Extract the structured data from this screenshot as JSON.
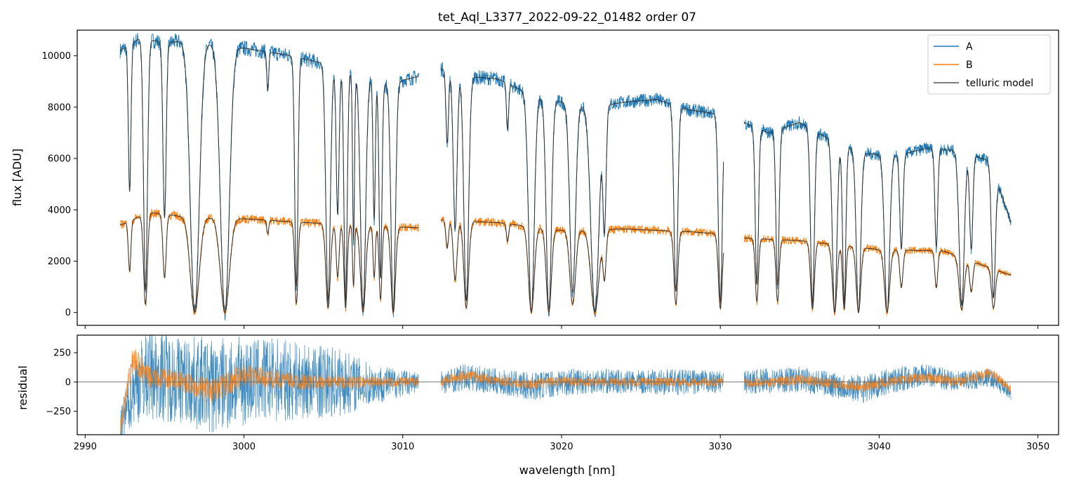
{
  "chart_data": [
    {
      "type": "line",
      "panel": "spectrum",
      "title": "tet_Aql_L3377_2022-09-22_01482  order 07",
      "xlabel": "",
      "ylabel": "flux [ADU]",
      "xlim": [
        2989.5,
        3051.3
      ],
      "ylim": [
        -500,
        11000
      ],
      "xticks": [
        2990,
        3000,
        3010,
        3020,
        3030,
        3040,
        3050
      ],
      "yticks": [
        0,
        2000,
        4000,
        6000,
        8000,
        10000
      ],
      "ytick_labels": [
        "0",
        "2000",
        "4000",
        "6000",
        "8000",
        "10000"
      ],
      "legend_position": "top-right",
      "segments": [
        [
          2992.2,
          3011.0
        ],
        [
          3012.4,
          3030.2
        ],
        [
          3031.5,
          3048.3
        ]
      ],
      "series": [
        {
          "name": "A",
          "color": "#1f77b4",
          "continuum_x": [
            2992.2,
            2993.5,
            2995,
            2996.5,
            3000,
            3003,
            3005,
            3007,
            3009,
            3011.0,
            3012.4,
            3014,
            3016,
            3018,
            3020,
            3022,
            3024,
            3026,
            3028,
            3030.2,
            3031.5,
            3033,
            3035,
            3037,
            3039,
            3041,
            3043,
            3045,
            3047,
            3048.3
          ],
          "continuum_y": [
            10200,
            10700,
            10500,
            10600,
            10300,
            10000,
            9700,
            9300,
            8900,
            9200,
            9500,
            9200,
            9100,
            8500,
            8200,
            8000,
            8200,
            8300,
            7900,
            7700,
            7400,
            7000,
            7400,
            6700,
            6200,
            6100,
            6400,
            6300,
            5900,
            3500
          ]
        },
        {
          "name": "B",
          "color": "#ff7f0e",
          "continuum_x": [
            2992.2,
            2994,
            2996,
            3000,
            3004,
            3007,
            3011.0,
            3012.4,
            3016,
            3020,
            3024,
            3028,
            3030.2,
            3031.5,
            3035,
            3040,
            3044,
            3048.3
          ],
          "continuum_y": [
            3400,
            3900,
            3750,
            3650,
            3500,
            3400,
            3300,
            3600,
            3500,
            3200,
            3250,
            3150,
            3050,
            2900,
            2800,
            2450,
            2400,
            1450
          ]
        },
        {
          "name": "telluric model",
          "color": "#555555"
        }
      ],
      "absorption_lines": [
        {
          "center": 2992.8,
          "width": 0.08,
          "depth": 0.55
        },
        {
          "center": 2993.8,
          "width": 0.12,
          "depth": 0.92
        },
        {
          "center": 2995.0,
          "width": 0.1,
          "depth": 0.65
        },
        {
          "center": 2996.9,
          "width": 0.28,
          "depth": 1.0
        },
        {
          "center": 2998.8,
          "width": 0.28,
          "depth": 1.0
        },
        {
          "center": 3001.5,
          "width": 0.06,
          "depth": 0.15
        },
        {
          "center": 3003.3,
          "width": 0.1,
          "depth": 0.9
        },
        {
          "center": 3005.3,
          "width": 0.14,
          "depth": 0.95
        },
        {
          "center": 3005.9,
          "width": 0.09,
          "depth": 0.6
        },
        {
          "center": 3006.4,
          "width": 0.1,
          "depth": 0.95
        },
        {
          "center": 3006.9,
          "width": 0.06,
          "depth": 0.7
        },
        {
          "center": 3007.5,
          "width": 0.16,
          "depth": 1.0
        },
        {
          "center": 3008.2,
          "width": 0.07,
          "depth": 0.6
        },
        {
          "center": 3008.6,
          "width": 0.09,
          "depth": 0.85
        },
        {
          "center": 3009.4,
          "width": 0.14,
          "depth": 1.0
        },
        {
          "center": 3012.8,
          "width": 0.08,
          "depth": 0.3
        },
        {
          "center": 3013.3,
          "width": 0.12,
          "depth": 0.65
        },
        {
          "center": 3014.0,
          "width": 0.15,
          "depth": 0.95
        },
        {
          "center": 3016.6,
          "width": 0.07,
          "depth": 0.2
        },
        {
          "center": 3018.1,
          "width": 0.18,
          "depth": 1.0
        },
        {
          "center": 3019.2,
          "width": 0.16,
          "depth": 1.0
        },
        {
          "center": 3020.7,
          "width": 0.18,
          "depth": 0.9
        },
        {
          "center": 3022.1,
          "width": 0.25,
          "depth": 1.0
        },
        {
          "center": 3022.7,
          "width": 0.1,
          "depth": 0.6
        },
        {
          "center": 3027.2,
          "width": 0.12,
          "depth": 0.9
        },
        {
          "center": 3030.0,
          "width": 0.12,
          "depth": 0.95
        },
        {
          "center": 3032.3,
          "width": 0.1,
          "depth": 0.85
        },
        {
          "center": 3033.6,
          "width": 0.1,
          "depth": 0.85
        },
        {
          "center": 3035.8,
          "width": 0.12,
          "depth": 0.95
        },
        {
          "center": 3037.2,
          "width": 0.14,
          "depth": 1.0
        },
        {
          "center": 3037.8,
          "width": 0.1,
          "depth": 0.95
        },
        {
          "center": 3038.7,
          "width": 0.14,
          "depth": 1.0
        },
        {
          "center": 3040.5,
          "width": 0.16,
          "depth": 1.0
        },
        {
          "center": 3041.4,
          "width": 0.1,
          "depth": 0.6
        },
        {
          "center": 3043.6,
          "width": 0.09,
          "depth": 0.6
        },
        {
          "center": 3045.2,
          "width": 0.16,
          "depth": 0.95
        },
        {
          "center": 3045.8,
          "width": 0.1,
          "depth": 0.6
        },
        {
          "center": 3047.2,
          "width": 0.12,
          "depth": 0.9
        }
      ]
    },
    {
      "type": "line",
      "panel": "residual",
      "xlabel": "wavelength [nm]",
      "ylabel": "residual",
      "xlim": [
        2989.5,
        3051.3
      ],
      "ylim": [
        -450,
        400
      ],
      "xticks": [
        2990,
        3000,
        3010,
        3020,
        3030,
        3040,
        3050
      ],
      "xtick_labels": [
        "2990",
        "3000",
        "3010",
        "3020",
        "3030",
        "3040",
        "3050"
      ],
      "yticks": [
        -250,
        0,
        250
      ],
      "ytick_labels": [
        "−250",
        "0",
        "250"
      ],
      "reference_line_y": 0,
      "series": [
        {
          "name": "A",
          "color": "#1f77b4",
          "scatter_x": [
            2992.2,
            2993,
            2994,
            2996,
            2998,
            3000,
            3002,
            3004,
            3006,
            3008,
            3011.0,
            3012.4,
            3014,
            3016,
            3018,
            3020,
            3022,
            3024,
            3026,
            3028,
            3030.2,
            3031.5,
            3033,
            3035,
            3037,
            3039,
            3041,
            3043,
            3045,
            3047,
            3048.3
          ],
          "scatter_amplitude": [
            150,
            320,
            400,
            380,
            420,
            380,
            360,
            320,
            300,
            180,
            90,
            100,
            120,
            110,
            120,
            120,
            110,
            100,
            110,
            110,
            90,
            100,
            110,
            110,
            110,
            120,
            110,
            100,
            90,
            80,
            60
          ],
          "offset": [
            -420,
            -50,
            80,
            20,
            -40,
            10,
            20,
            0,
            0,
            -20,
            0,
            0,
            40,
            0,
            -40,
            0,
            10,
            0,
            0,
            0,
            0,
            0,
            10,
            20,
            -20,
            -60,
            20,
            60,
            0,
            40,
            -100
          ]
        },
        {
          "name": "B",
          "color": "#ff7f0e",
          "scatter_x": [
            2992.2,
            2993,
            2994,
            2996,
            2998,
            3000,
            3002,
            3004,
            3006,
            3008,
            3011.0,
            3012.4,
            3014,
            3016,
            3018,
            3020,
            3022,
            3024,
            3026,
            3028,
            3030.2,
            3031.5,
            3033,
            3035,
            3037,
            3039,
            3041,
            3043,
            3045,
            3047,
            3048.3
          ],
          "scatter_amplitude": [
            80,
            120,
            100,
            90,
            110,
            100,
            80,
            70,
            60,
            50,
            40,
            40,
            50,
            45,
            45,
            45,
            40,
            40,
            40,
            40,
            40,
            45,
            45,
            45,
            45,
            45,
            45,
            45,
            45,
            45,
            40
          ],
          "offset": [
            -420,
            200,
            40,
            10,
            -80,
            60,
            20,
            0,
            0,
            0,
            0,
            0,
            60,
            10,
            -20,
            10,
            0,
            0,
            0,
            0,
            0,
            0,
            0,
            20,
            -10,
            -40,
            10,
            40,
            0,
            80,
            -60
          ]
        }
      ]
    }
  ]
}
